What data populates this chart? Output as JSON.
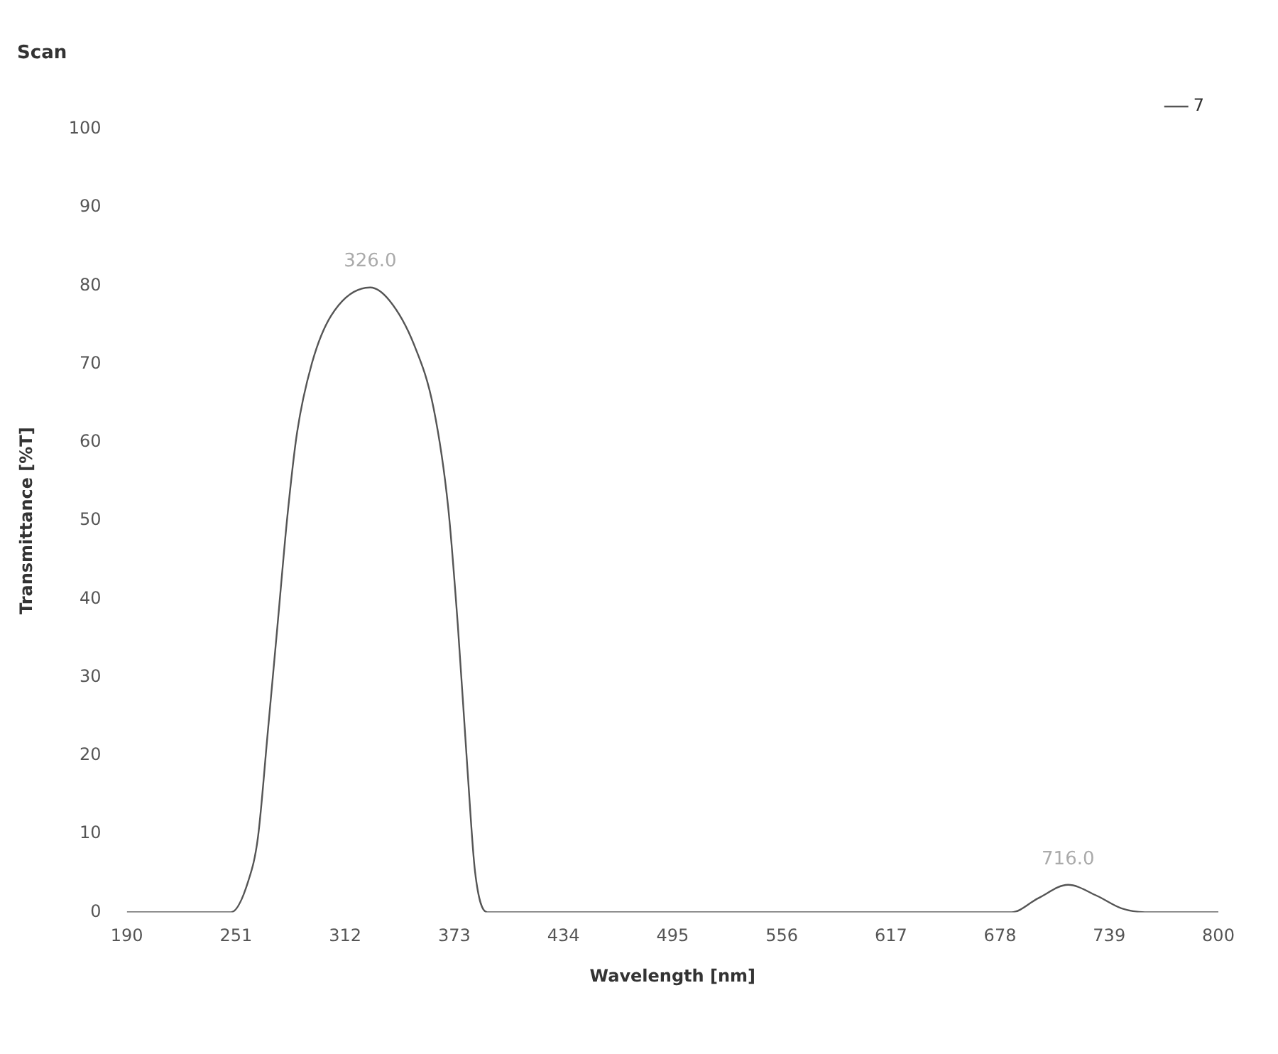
{
  "chart_data": {
    "type": "line",
    "subtitle": "Scan",
    "xlabel": "Wavelength [nm]",
    "ylabel": "Transmittance [%T]",
    "xlim": [
      190,
      800
    ],
    "xticks": [
      190,
      251,
      312,
      373,
      434,
      495,
      556,
      617,
      678,
      739,
      800
    ],
    "ylim": [
      0,
      100
    ],
    "yticks": [
      0,
      10,
      20,
      30,
      40,
      50,
      60,
      70,
      80,
      90,
      100
    ],
    "grid": false,
    "legend": "top right",
    "marker": "none",
    "line_style": "solid",
    "series": [
      {
        "name": "7",
        "color": "#555555",
        "x": [
          190,
          248.3,
          257.9,
          263.3,
          268.7,
          274.2,
          279.7,
          285.1,
          293.3,
          304.2,
          326,
          336.9,
          350.5,
          361.5,
          369.6,
          375,
          380.5,
          384.6,
          391.4,
          684.4,
          699.4,
          716,
          732.1,
          745.8,
          759,
          800
        ],
        "values": [
          0,
          0,
          4,
          9.6,
          22.8,
          36.6,
          50.5,
          61.2,
          70,
          76.2,
          79.8,
          78.1,
          72.5,
          64.3,
          51.7,
          36.6,
          17.8,
          5.2,
          0,
          0,
          1.8,
          3.5,
          2.1,
          0.5,
          0,
          0
        ]
      }
    ],
    "annotations": [
      {
        "text": "326.0",
        "x": 326,
        "y": 79.8
      },
      {
        "text": "716.0",
        "x": 716,
        "y": 3.5
      }
    ]
  }
}
